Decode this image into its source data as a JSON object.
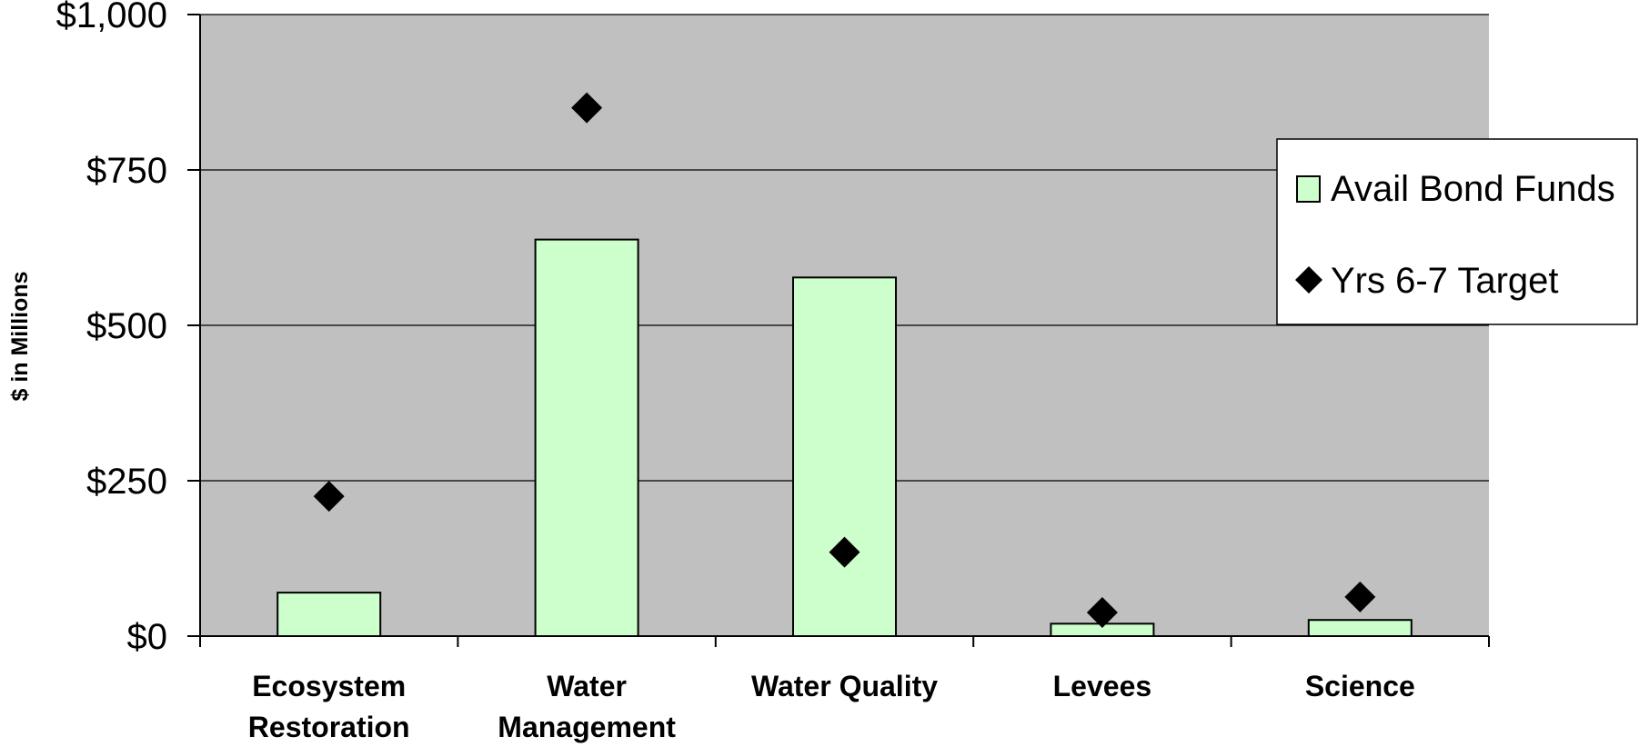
{
  "chart_data": {
    "type": "bar",
    "title": "",
    "xlabel": "",
    "ylabel": "$ in Millions",
    "ylim": [
      0,
      1000
    ],
    "yticks": [
      0,
      250,
      500,
      750,
      1000
    ],
    "ytick_labels": [
      "$0",
      "$250",
      "$500",
      "$750",
      "$1,000"
    ],
    "grid": true,
    "legend_position": "right",
    "categories": [
      [
        "Ecosystem",
        "Restoration"
      ],
      [
        "Water",
        "Management"
      ],
      [
        "Water Quality"
      ],
      [
        "Levees"
      ],
      [
        "Science"
      ]
    ],
    "series": [
      {
        "name": "Avail Bond Funds",
        "kind": "bar",
        "values": [
          70,
          638,
          577,
          20,
          26
        ]
      },
      {
        "name": "Yrs 6-7 Target",
        "kind": "marker",
        "values": [
          225,
          850,
          135,
          38,
          63
        ]
      }
    ],
    "colors": {
      "plot_background": "#c0c0c0",
      "bar_fill": "#ccffcc",
      "bar_stroke": "#000000",
      "marker_fill": "#000000",
      "gridline": "#000000"
    }
  }
}
